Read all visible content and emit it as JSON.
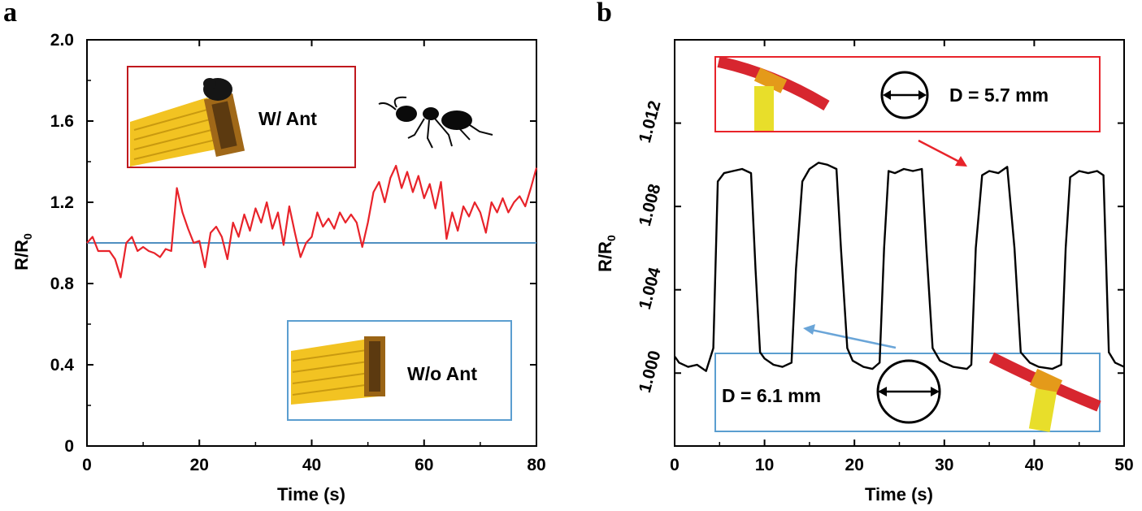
{
  "chart_data": [
    {
      "panel": "a",
      "type": "line",
      "xlabel": "Time (s)",
      "ylabel": "R/R",
      "ylabel_sub": "0",
      "xlim": [
        0,
        80
      ],
      "ylim": [
        0,
        2.0
      ],
      "xticks": [
        0,
        20,
        40,
        60,
        80
      ],
      "yticks": [
        0,
        0.4,
        0.8,
        1.2,
        1.6,
        2.0
      ],
      "xtick_labels": [
        "0",
        "20",
        "40",
        "60",
        "80"
      ],
      "ytick_labels": [
        "0",
        "0.4",
        "0.8",
        "1.2",
        "1.6",
        "2.0"
      ],
      "series": [
        {
          "name": "W/ Ant",
          "color": "#e8232a",
          "x": [
            0,
            1,
            2,
            3,
            4,
            5,
            6,
            7,
            8,
            9,
            10,
            11,
            12,
            13,
            14,
            15,
            16,
            17,
            18,
            19,
            20,
            21,
            22,
            23,
            24,
            25,
            26,
            27,
            28,
            29,
            30,
            31,
            32,
            33,
            34,
            35,
            36,
            37,
            38,
            39,
            40,
            41,
            42,
            43,
            44,
            45,
            46,
            47,
            48,
            49,
            50,
            51,
            52,
            53,
            54,
            55,
            56,
            57,
            58,
            59,
            60,
            61,
            62,
            63,
            64,
            65,
            66,
            67,
            68,
            69,
            70,
            71,
            72,
            73,
            74,
            75,
            76,
            77,
            78,
            79,
            80
          ],
          "y": [
            1.0,
            1.03,
            0.96,
            0.96,
            0.96,
            0.92,
            0.83,
            1.0,
            1.03,
            0.96,
            0.98,
            0.96,
            0.95,
            0.93,
            0.97,
            0.96,
            1.27,
            1.15,
            1.07,
            1.0,
            1.01,
            0.88,
            1.05,
            1.08,
            1.03,
            0.92,
            1.1,
            1.03,
            1.14,
            1.06,
            1.17,
            1.1,
            1.2,
            1.07,
            1.15,
            0.99,
            1.18,
            1.05,
            0.93,
            1.0,
            1.03,
            1.15,
            1.08,
            1.12,
            1.07,
            1.15,
            1.1,
            1.14,
            1.1,
            0.98,
            1.1,
            1.25,
            1.3,
            1.2,
            1.32,
            1.38,
            1.27,
            1.35,
            1.25,
            1.33,
            1.22,
            1.29,
            1.17,
            1.3,
            1.02,
            1.15,
            1.06,
            1.18,
            1.13,
            1.2,
            1.15,
            1.05,
            1.2,
            1.15,
            1.22,
            1.15,
            1.2,
            1.23,
            1.18,
            1.27,
            1.37
          ]
        },
        {
          "name": "W/o Ant",
          "color": "#4f8fc0",
          "x": [
            0,
            80
          ],
          "y": [
            1.0,
            1.0
          ]
        }
      ],
      "insets": [
        {
          "label": "W/ Ant",
          "border": "#c0181e"
        },
        {
          "label": "W/o Ant",
          "border": "#5b9ed0"
        }
      ]
    },
    {
      "panel": "b",
      "type": "line",
      "xlabel": "Time (s)",
      "ylabel": "R/R",
      "ylabel_sub": "0",
      "xlim": [
        0,
        50
      ],
      "ylim": [
        0.9965,
        1.016
      ],
      "xticks": [
        0,
        10,
        20,
        30,
        40,
        50
      ],
      "yticks": [
        1.0,
        1.004,
        1.008,
        1.012
      ],
      "xtick_labels": [
        "0",
        "10",
        "20",
        "30",
        "40",
        "50"
      ],
      "ytick_labels": [
        "1.000",
        "1.004",
        "1.008",
        "1.012"
      ],
      "series": [
        {
          "name": "R/R0",
          "color": "#000000",
          "x": [
            0,
            0.5,
            1.5,
            2.5,
            3.5,
            4.3,
            4.8,
            5.5,
            6.5,
            7.5,
            8.5,
            9.0,
            9.5,
            10.0,
            11.0,
            12.0,
            13.0,
            13.5,
            14.2,
            15.0,
            16.0,
            17.0,
            18.0,
            18.5,
            19.2,
            19.8,
            21.0,
            22.0,
            22.8,
            23.3,
            23.8,
            24.5,
            25.5,
            26.5,
            27.5,
            28.0,
            28.7,
            29.5,
            31.0,
            32.5,
            33.0,
            33.5,
            34.2,
            35.0,
            36.0,
            37.0,
            37.8,
            38.5,
            39.5,
            40.5,
            42.0,
            43.0,
            43.5,
            44.0,
            45.0,
            46.0,
            47.0,
            47.7,
            48.3,
            49.0,
            50.0
          ],
          "y": [
            1.0008,
            1.0005,
            1.0003,
            1.0004,
            1.0001,
            1.0012,
            1.0092,
            1.0096,
            1.0097,
            1.0098,
            1.0096,
            1.005,
            1.001,
            1.0007,
            1.0004,
            1.0003,
            1.0005,
            1.005,
            1.0092,
            1.0098,
            1.0101,
            1.01,
            1.0098,
            1.006,
            1.0012,
            1.0006,
            1.0003,
            1.0002,
            1.0005,
            1.006,
            1.0097,
            1.0096,
            1.0098,
            1.0097,
            1.0098,
            1.006,
            1.0012,
            1.0006,
            1.0003,
            1.0002,
            1.0004,
            1.006,
            1.0095,
            1.0097,
            1.0096,
            1.0099,
            1.006,
            1.001,
            1.0005,
            1.0003,
            1.0002,
            1.0004,
            1.006,
            1.0094,
            1.0097,
            1.0096,
            1.0097,
            1.0095,
            1.001,
            1.0005,
            1.0003
          ]
        }
      ],
      "insets": [
        {
          "label": "D = 5.7 mm",
          "border": "#e8232a"
        },
        {
          "label": "D = 6.1 mm",
          "border": "#5b9ed0"
        }
      ]
    }
  ],
  "labels": {
    "panel_a": "a",
    "panel_b": "b"
  }
}
